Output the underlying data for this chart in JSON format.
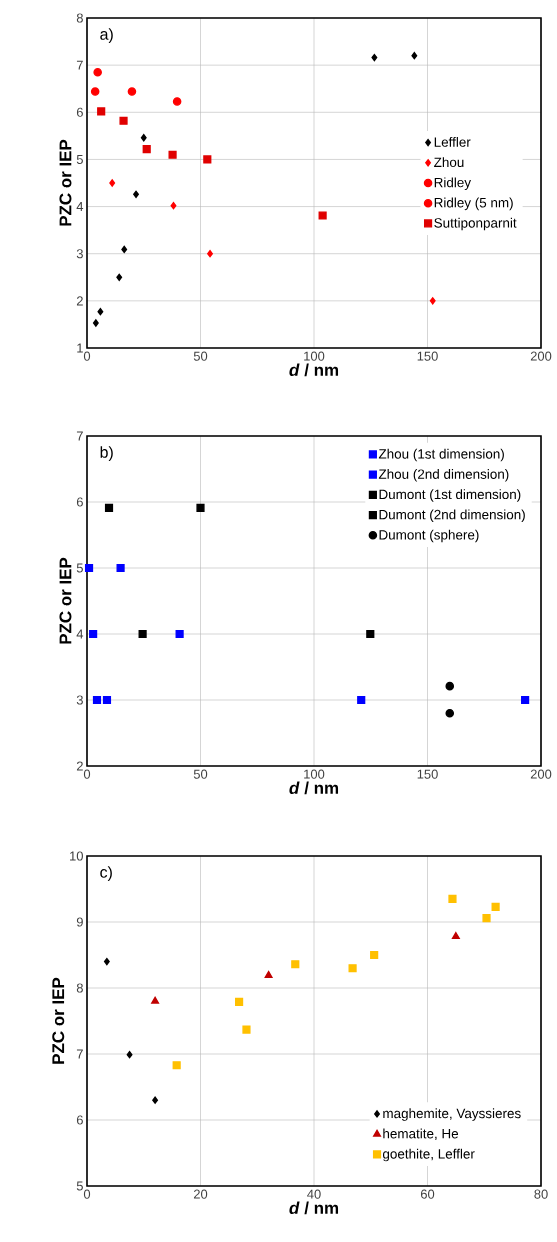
{
  "chart_data": [
    {
      "type": "scatter",
      "xlabel": "*d* / nm",
      "ylabel": "PZC or IEP",
      "annotations": [
        "a)"
      ],
      "xlim": [
        0,
        200
      ],
      "ylim": [
        1,
        8
      ],
      "xticks": [
        0,
        50,
        100,
        150,
        200
      ],
      "yticks": [
        1,
        2,
        3,
        4,
        5,
        6,
        7,
        8
      ],
      "grid": true,
      "legend": "right",
      "series": [
        {
          "name": "Leffler",
          "color": "#000000",
          "marker": "diamond",
          "x": [
            3.9,
            5.9,
            14.2,
            16.4,
            21.6,
            25,
            126.6,
            144.2
          ],
          "values": [
            1.53,
            1.77,
            2.5,
            3.09,
            4.26,
            5.46,
            7.16,
            7.2
          ]
        },
        {
          "name": "Zhou",
          "color": "#ff0000",
          "marker": "diamond",
          "x": [
            11.1,
            38.1,
            54.2,
            152.3
          ],
          "values": [
            4.5,
            4.02,
            3.0,
            2.0
          ]
        },
        {
          "name": "Ridley",
          "color": "#ff0000",
          "marker": "circle",
          "x": [
            3.6,
            19.8,
            39.7
          ],
          "values": [
            6.44,
            6.44,
            6.23
          ]
        },
        {
          "name": "Ridley (5 nm)",
          "color": "#ff0000",
          "marker": "circle",
          "x": [
            4.7
          ],
          "values": [
            6.85
          ]
        },
        {
          "name": "Suttiponparnit",
          "color": "#e00000",
          "marker": "square",
          "x": [
            6.25,
            16.1,
            26.3,
            37.7,
            53,
            103.8
          ],
          "values": [
            6.02,
            5.82,
            5.22,
            5.1,
            5.0,
            3.81
          ]
        }
      ]
    },
    {
      "type": "scatter",
      "xlabel": "*d* / nm",
      "ylabel": "PZC or IEP",
      "annotations": [
        "b)"
      ],
      "xlim": [
        0,
        200
      ],
      "ylim": [
        2,
        7
      ],
      "xticks": [
        0,
        50,
        100,
        150,
        200
      ],
      "yticks": [
        2,
        3,
        4,
        5,
        6,
        7
      ],
      "grid": true,
      "legend": "top right",
      "series": [
        {
          "name": "Zhou (1st dimension)",
          "color": "#0000ff",
          "marker": "square",
          "x": [
            14.8,
            40.8,
            120.8,
            193
          ],
          "values": [
            5,
            4,
            3,
            3
          ]
        },
        {
          "name": "Zhou (2nd dimension)",
          "color": "#0000ff",
          "marker": "square",
          "x": [
            0.9,
            2.7,
            4.4,
            8.8
          ],
          "values": [
            5,
            4,
            3,
            3
          ]
        },
        {
          "name": "Dumont (1st dimension)",
          "color": "#000000",
          "marker": "square",
          "x": [
            9.7,
            24.5
          ],
          "values": [
            5.91,
            4
          ]
        },
        {
          "name": "Dumont (2nd dimension)",
          "color": "#000000",
          "marker": "square",
          "x": [
            50,
            124.8
          ],
          "values": [
            5.91,
            4
          ]
        },
        {
          "name": "Dumont (sphere)",
          "color": "#000000",
          "marker": "circle",
          "x": [
            159.8,
            159.8
          ],
          "values": [
            3.21,
            2.8
          ]
        }
      ]
    },
    {
      "type": "scatter",
      "xlabel": "*d* / nm",
      "ylabel": "PZC or IEP",
      "annotations": [
        "c)"
      ],
      "xlim": [
        0,
        80
      ],
      "ylim": [
        5,
        10
      ],
      "xticks": [
        0,
        20,
        40,
        60,
        80
      ],
      "yticks": [
        5,
        6,
        7,
        8,
        9,
        10
      ],
      "grid": true,
      "legend": "bottom right",
      "series": [
        {
          "name": "maghemite, Vayssieres",
          "color": "#000000",
          "marker": "diamond",
          "x": [
            3.5,
            7.5,
            12
          ],
          "values": [
            8.4,
            6.99,
            6.3
          ]
        },
        {
          "name": "hematite, He",
          "color": "#c00000",
          "marker": "triangle",
          "x": [
            12,
            32,
            65
          ],
          "values": [
            7.8,
            8.19,
            8.78
          ]
        },
        {
          "name": "goethite, Leffler",
          "color": "#ffc000",
          "marker": "square",
          "x": [
            15.8,
            26.8,
            28.1,
            36.7,
            46.8,
            50.6,
            64.4,
            70.4,
            72
          ],
          "values": [
            6.83,
            7.79,
            7.37,
            8.36,
            8.3,
            8.5,
            9.35,
            9.06,
            9.23
          ]
        }
      ]
    }
  ]
}
